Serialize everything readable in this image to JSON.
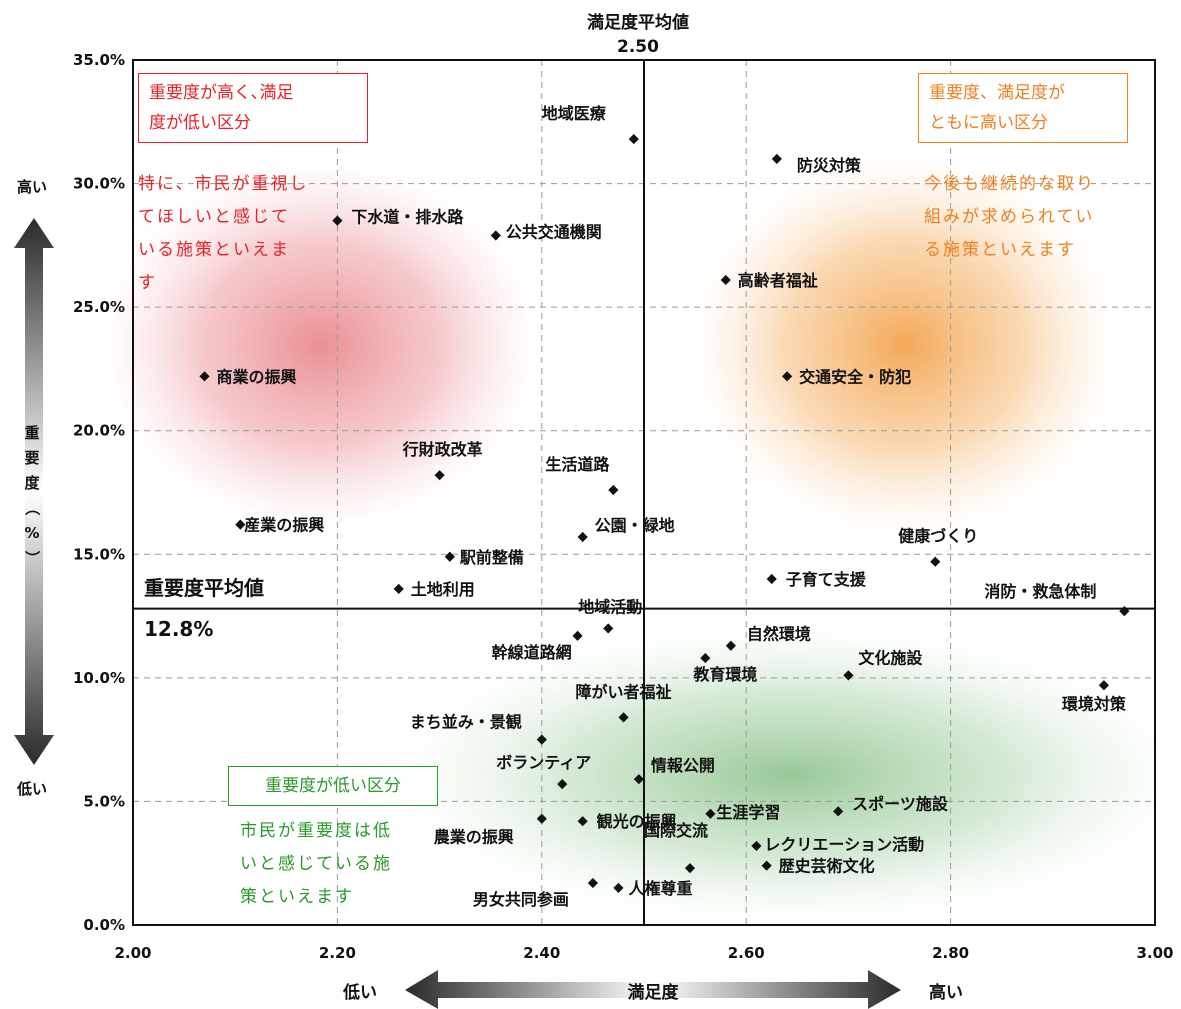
{
  "header": {
    "mean_label": "満足度平均値",
    "mean_value": "2.50"
  },
  "side": {
    "high": "高い",
    "low": "低い",
    "ylabel_chars": [
      "重",
      "要",
      "度",
      "（",
      "%",
      "）"
    ]
  },
  "bottom": {
    "low": "低い",
    "label": "満足度",
    "high": "高い"
  },
  "importance_avg": {
    "label": "重要度平均値",
    "value": "12.8%"
  },
  "quadrants": {
    "top_left": {
      "box": [
        "重要度が高く､満足",
        "度が低い区分"
      ],
      "note": [
        "特に、市民が重視し",
        "てほしいと感じて",
        "いる施策といえま",
        "す"
      ],
      "color": "#e8202a"
    },
    "top_right": {
      "box": [
        "重要度、満足度が",
        "ともに高い区分"
      ],
      "note": [
        "今後も継続的な取り",
        "組みが求められてい",
        "る施策といえます"
      ],
      "color": "#f07f1e"
    },
    "bottom_left": {
      "box": [
        "重要度が低い区分"
      ],
      "note": [
        "市民が重要度は低",
        "いと感じている施",
        "策といえます"
      ],
      "color": "#2a9a2a"
    }
  },
  "chart_data": {
    "type": "scatter",
    "xlabel": "満足度",
    "ylabel": "重要度（%）",
    "xlim": [
      2.0,
      3.0
    ],
    "ylim": [
      0,
      35
    ],
    "xticks": [
      "2.00",
      "2.20",
      "2.40",
      "2.60",
      "2.80",
      "3.00"
    ],
    "yticks": [
      "0.0%",
      "5.0%",
      "10.0%",
      "15.0%",
      "20.0%",
      "25.0%",
      "30.0%",
      "35.0%"
    ],
    "ref_lines": {
      "x": 2.5,
      "y": 12.8
    },
    "grid": true,
    "points": [
      {
        "label": "地域医療",
        "x": 2.49,
        "y": 31.8
      },
      {
        "label": "防災対策",
        "x": 2.63,
        "y": 31.0
      },
      {
        "label": "下水道・排水路",
        "x": 2.2,
        "y": 28.5
      },
      {
        "label": "公共交通機関",
        "x": 2.355,
        "y": 27.9
      },
      {
        "label": "高齢者福祉",
        "x": 2.58,
        "y": 26.1
      },
      {
        "label": "商業の振興",
        "x": 2.07,
        "y": 22.2
      },
      {
        "label": "交通安全・防犯",
        "x": 2.64,
        "y": 22.2
      },
      {
        "label": "行財政改革",
        "x": 2.3,
        "y": 18.2
      },
      {
        "label": "生活道路",
        "x": 2.47,
        "y": 17.6
      },
      {
        "label": "産業の振興",
        "x": 2.105,
        "y": 16.2
      },
      {
        "label": "公園・緑地",
        "x": 2.44,
        "y": 15.7
      },
      {
        "label": "駅前整備",
        "x": 2.31,
        "y": 14.9
      },
      {
        "label": "健康づくり",
        "x": 2.785,
        "y": 14.7
      },
      {
        "label": "子育て支援",
        "x": 2.625,
        "y": 14.0
      },
      {
        "label": "土地利用",
        "x": 2.26,
        "y": 13.6
      },
      {
        "label": "消防・救急体制",
        "x": 2.97,
        "y": 12.7
      },
      {
        "label": "地域活動",
        "x": 2.465,
        "y": 12.0
      },
      {
        "label": "幹線道路網",
        "x": 2.435,
        "y": 11.7
      },
      {
        "label": "自然環境",
        "x": 2.585,
        "y": 11.3
      },
      {
        "label": "教育環境",
        "x": 2.56,
        "y": 10.8
      },
      {
        "label": "文化施設",
        "x": 2.7,
        "y": 10.1
      },
      {
        "label": "環境対策",
        "x": 2.95,
        "y": 9.7
      },
      {
        "label": "障がい者福祉",
        "x": 2.48,
        "y": 8.4
      },
      {
        "label": "まち並み・景観",
        "x": 2.4,
        "y": 7.5
      },
      {
        "label": "情報公開",
        "x": 2.495,
        "y": 5.9
      },
      {
        "label": "ボランティア",
        "x": 2.42,
        "y": 5.7
      },
      {
        "label": "生涯学習",
        "x": 2.565,
        "y": 4.5
      },
      {
        "label": "スポーツ施設",
        "x": 2.69,
        "y": 4.6
      },
      {
        "label": "農業の振興",
        "x": 2.4,
        "y": 4.3
      },
      {
        "label": "観光の振興",
        "x": 2.44,
        "y": 4.2
      },
      {
        "label": "レクリエーション活動",
        "x": 2.61,
        "y": 3.2
      },
      {
        "label": "国際交流",
        "x": 2.545,
        "y": 2.3
      },
      {
        "label": "歴史芸術文化",
        "x": 2.62,
        "y": 2.4
      },
      {
        "label": "男女共同参画",
        "x": 2.45,
        "y": 1.7
      },
      {
        "label": "人権尊重",
        "x": 2.475,
        "y": 1.5
      }
    ]
  }
}
